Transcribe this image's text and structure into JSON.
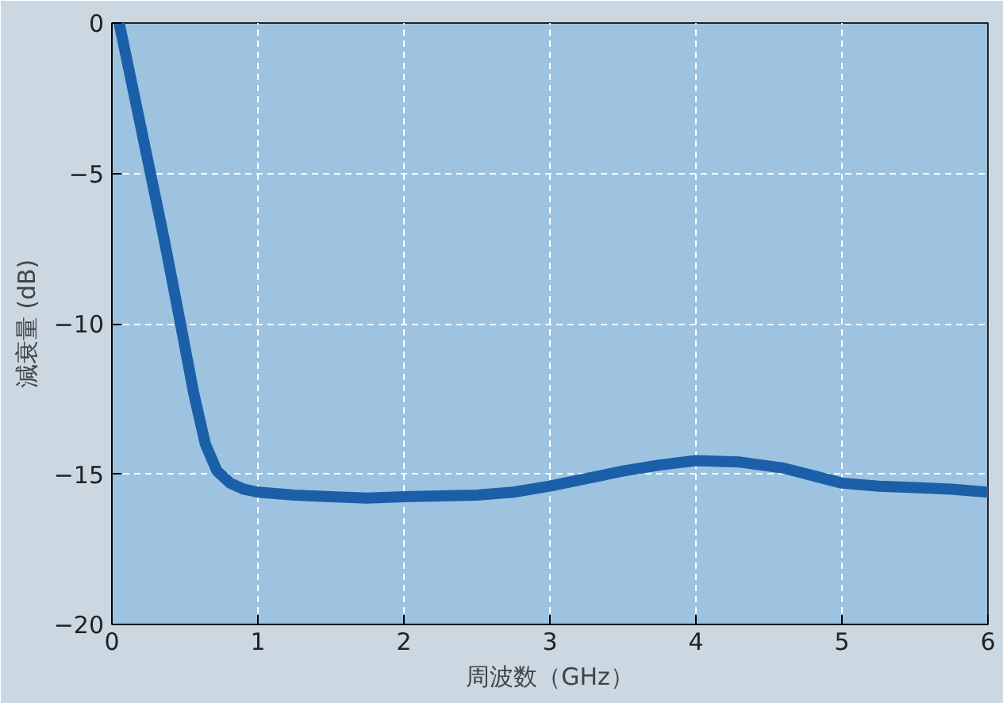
{
  "chart_data": {
    "type": "line",
    "xlabel": "周波数（GHz）",
    "ylabel": "減衰量 (dB)",
    "x": [
      0.05,
      0.2,
      0.35,
      0.47,
      0.56,
      0.64,
      0.72,
      0.81,
      0.9,
      1.0,
      1.25,
      1.5,
      1.75,
      2.0,
      2.5,
      2.75,
      3.0,
      3.25,
      3.5,
      3.75,
      4.0,
      4.3,
      4.6,
      4.8,
      5.0,
      5.25,
      5.5,
      5.75,
      6.0
    ],
    "series": [
      {
        "color": "#1a5fa8",
        "values": [
          0,
          -3.5,
          -7,
          -10,
          -12.3,
          -14.0,
          -14.9,
          -15.3,
          -15.5,
          -15.6,
          -15.7,
          -15.75,
          -15.8,
          -15.75,
          -15.7,
          -15.6,
          -15.4,
          -15.15,
          -14.9,
          -14.7,
          -14.55,
          -14.6,
          -14.8,
          -15.05,
          -15.3,
          -15.4,
          -15.45,
          -15.5,
          -15.6
        ]
      }
    ],
    "xlim": [
      0,
      6
    ],
    "ylim": [
      -20,
      0
    ],
    "xticks": [
      0,
      1,
      2,
      3,
      4,
      5,
      6
    ],
    "yticks": [
      0,
      {
        "value": -5,
        "label": "−5"
      },
      {
        "value": -10,
        "label": "−10"
      },
      {
        "value": -15,
        "label": "−15"
      },
      {
        "value": -20,
        "label": "−20"
      }
    ],
    "grid": true,
    "line_style": "solid",
    "marker": "none"
  }
}
